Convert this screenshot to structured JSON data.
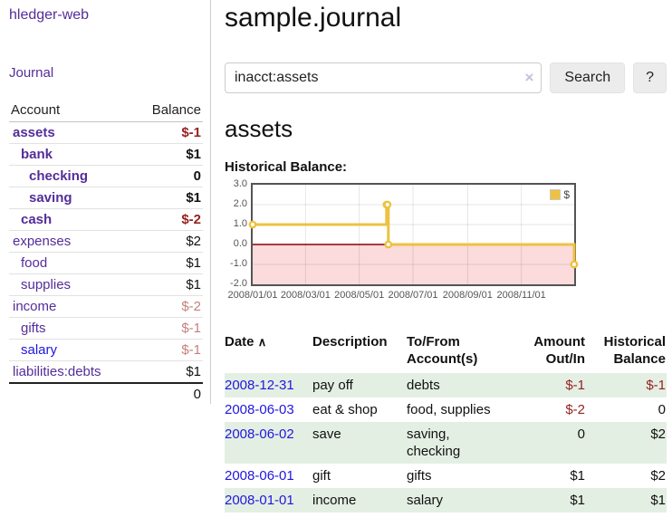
{
  "colors": {
    "accent_purple": "#542d99",
    "link_blue": "#2017dd",
    "negative_red": "#962221",
    "faded_negative_red": "#c5807f",
    "row_green": "#e4efe4",
    "chart_yellow": "#edc240",
    "chart_negative_fill": "#fbdbdb",
    "chart_zero_line": "#8b0000",
    "plot_border": "#545454",
    "button_gray": "#ececec"
  },
  "sidebar": {
    "brand": "hledger-web",
    "nav": {
      "journal": "Journal"
    },
    "table": {
      "headers": {
        "account": "Account",
        "balance": "Balance"
      },
      "accounts": [
        {
          "name": "assets",
          "balance": "$-1",
          "depth": 1,
          "bold": true,
          "name_style": "purple",
          "balance_style": "neg"
        },
        {
          "name": "bank",
          "balance": "$1",
          "depth": 2,
          "bold": true,
          "name_style": "purple",
          "balance_style": "pos"
        },
        {
          "name": "checking",
          "balance": "0",
          "depth": 3,
          "bold": true,
          "name_style": "purple",
          "balance_style": "pos"
        },
        {
          "name": "saving",
          "balance": "$1",
          "depth": 3,
          "bold": true,
          "name_style": "purple",
          "balance_style": "pos"
        },
        {
          "name": "cash",
          "balance": "$-2",
          "depth": 2,
          "bold": true,
          "name_style": "purple",
          "balance_style": "neg"
        },
        {
          "name": "expenses",
          "balance": "$2",
          "depth": 1,
          "bold": false,
          "name_style": "purple",
          "balance_style": "pos"
        },
        {
          "name": "food",
          "balance": "$1",
          "depth": 2,
          "bold": false,
          "name_style": "purple",
          "balance_style": "pos"
        },
        {
          "name": "supplies",
          "balance": "$1",
          "depth": 2,
          "bold": false,
          "name_style": "purple",
          "balance_style": "pos"
        },
        {
          "name": "income",
          "balance": "$-2",
          "depth": 1,
          "bold": false,
          "name_style": "purple",
          "balance_style": "negfaded"
        },
        {
          "name": "gifts",
          "balance": "$-1",
          "depth": 2,
          "bold": false,
          "name_style": "purple",
          "balance_style": "negfaded"
        },
        {
          "name": "salary",
          "balance": "$-1",
          "depth": 2,
          "bold": false,
          "name_style": "blue",
          "balance_style": "negfaded"
        },
        {
          "name": "liabilities:debts",
          "balance": "$1",
          "depth": 1,
          "bold": false,
          "name_style": "purple",
          "balance_style": "pos"
        }
      ],
      "total": "0"
    }
  },
  "main": {
    "title": "sample.journal",
    "search": {
      "value": "inacct:assets",
      "clear_icon": "×",
      "search_button": "Search",
      "help_button": "?"
    },
    "account_heading": "assets",
    "chart_title": "Historical Balance:",
    "register": {
      "headers": {
        "date": "Date",
        "sort_icon": "∧",
        "description": "Description",
        "accounts": "To/From Account(s)",
        "amount": "Amount Out/In",
        "balance": "Historical Balance"
      },
      "rows": [
        {
          "date": "2008-12-31",
          "description": "pay off",
          "accounts": "debts",
          "amount": "$-1",
          "amount_neg": true,
          "balance": "$-1",
          "balance_neg": true
        },
        {
          "date": "2008-06-03",
          "description": "eat & shop",
          "accounts": "food, supplies",
          "amount": "$-2",
          "amount_neg": true,
          "balance": "0",
          "balance_neg": false
        },
        {
          "date": "2008-06-02",
          "description": "save",
          "accounts": "saving, checking",
          "amount": "0",
          "amount_neg": false,
          "balance": "$2",
          "balance_neg": false
        },
        {
          "date": "2008-06-01",
          "description": "gift",
          "accounts": "gifts",
          "amount": "$1",
          "amount_neg": false,
          "balance": "$2",
          "balance_neg": false
        },
        {
          "date": "2008-01-01",
          "description": "income",
          "accounts": "salary",
          "amount": "$1",
          "amount_neg": false,
          "balance": "$1",
          "balance_neg": false
        }
      ]
    }
  },
  "chart_data": {
    "type": "line",
    "step": true,
    "title": "Historical Balance",
    "legend": {
      "label": "$",
      "position": "top-right"
    },
    "series": [
      {
        "name": "$",
        "color": "#edc240"
      }
    ],
    "x": [
      "2008-01-01",
      "2008-06-01",
      "2008-06-02",
      "2008-06-03",
      "2008-12-31"
    ],
    "y": [
      1,
      2,
      2,
      0,
      -1
    ],
    "xrange": [
      "2008-01-01",
      "2008-12-31"
    ],
    "ylim": [
      -2,
      3
    ],
    "yticks": [
      3,
      2,
      1,
      0,
      -1,
      -2
    ],
    "xticks": [
      "2008/01/01",
      "2008/03/01",
      "2008/05/01",
      "2008/07/01",
      "2008/09/01",
      "2008/11/01"
    ],
    "grid": true,
    "negative_region_shaded": true
  }
}
